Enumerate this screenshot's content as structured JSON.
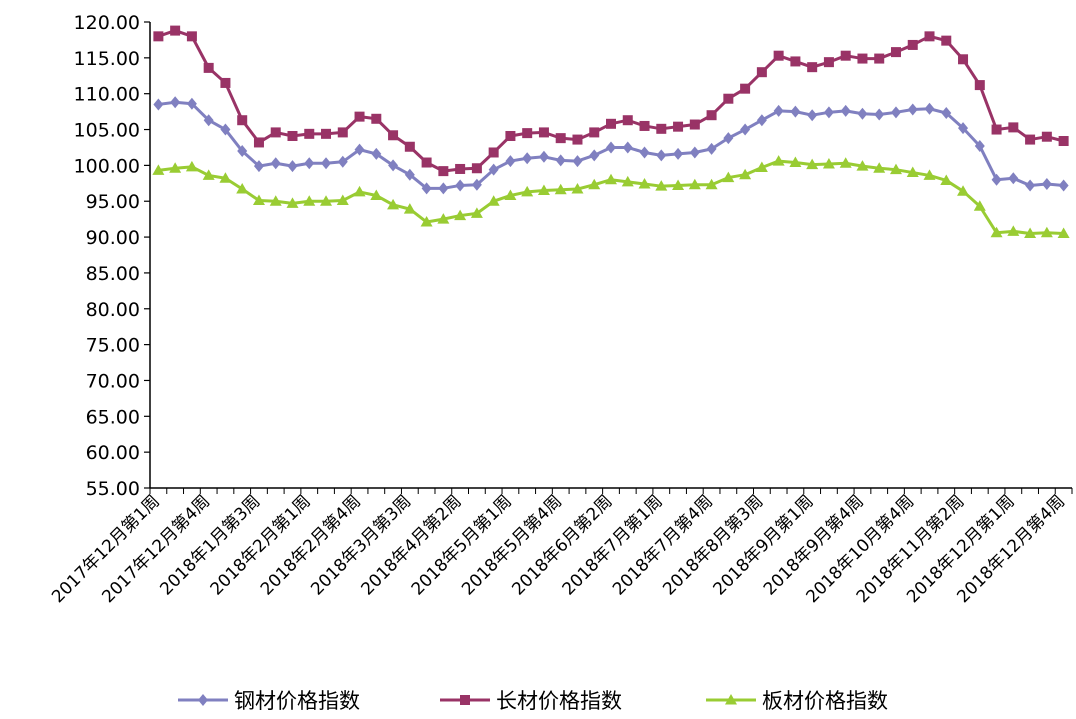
{
  "chart_data": {
    "type": "line",
    "title": "",
    "xlabel": "",
    "ylabel": "",
    "ylim": [
      55,
      120
    ],
    "y_ticks": [
      "55.00",
      "60.00",
      "65.00",
      "70.00",
      "75.00",
      "80.00",
      "85.00",
      "90.00",
      "95.00",
      "100.00",
      "105.00",
      "110.00",
      "115.00",
      "120.00"
    ],
    "x_tick_labels": [
      "2017年12月第1周",
      "2017年12月第4周",
      "2018年1月第3周",
      "2018年2月第1周",
      "2018年2月第4周",
      "2018年3月第3周",
      "2018年4月第2周",
      "2018年5月第1周",
      "2018年5月第4周",
      "2018年6月第2周",
      "2018年7月第1周",
      "2018年7月第4周",
      "2018年8月第3周",
      "2018年9月第1周",
      "2018年9月第4周",
      "2018年10月第4周",
      "2018年11月第2周",
      "2018年12月第1周",
      "2018年12月第4周"
    ],
    "grid": false,
    "legend_position": "bottom",
    "series": [
      {
        "name": "钢材价格指数",
        "color": "#8080c0",
        "marker": "diamond",
        "values": [
          108.5,
          108.8,
          108.6,
          106.3,
          105.0,
          102.0,
          99.9,
          100.3,
          99.9,
          100.3,
          100.3,
          100.5,
          102.2,
          101.6,
          100.0,
          98.7,
          96.8,
          96.8,
          97.2,
          97.3,
          99.4,
          100.6,
          101.0,
          101.2,
          100.7,
          100.6,
          101.4,
          102.5,
          102.5,
          101.8,
          101.4,
          101.6,
          101.8,
          102.3,
          103.8,
          105.0,
          106.3,
          107.6,
          107.5,
          107.0,
          107.4,
          107.6,
          107.2,
          107.1,
          107.4,
          107.8,
          107.9,
          107.3,
          105.2,
          102.7,
          98.0,
          98.2,
          97.2,
          97.4,
          97.2
        ]
      },
      {
        "name": "长材价格指数",
        "color": "#993366",
        "marker": "square",
        "values": [
          118.0,
          118.8,
          118.0,
          113.6,
          111.5,
          106.3,
          103.2,
          104.6,
          104.1,
          104.4,
          104.4,
          104.6,
          106.8,
          106.5,
          104.2,
          102.6,
          100.4,
          99.2,
          99.5,
          99.6,
          101.8,
          104.1,
          104.5,
          104.6,
          103.8,
          103.6,
          104.6,
          105.8,
          106.3,
          105.5,
          105.1,
          105.4,
          105.7,
          107.0,
          109.3,
          110.7,
          113.0,
          115.3,
          114.5,
          113.7,
          114.4,
          115.3,
          114.9,
          114.9,
          115.8,
          116.8,
          118.0,
          117.4,
          114.8,
          111.2,
          105.0,
          105.3,
          103.6,
          104.0,
          103.4
        ]
      },
      {
        "name": "板材价格指数",
        "color": "#99cc33",
        "marker": "triangle",
        "values": [
          99.3,
          99.6,
          99.8,
          98.6,
          98.2,
          96.7,
          95.1,
          95.0,
          94.7,
          95.0,
          95.0,
          95.1,
          96.3,
          95.8,
          94.5,
          93.9,
          92.1,
          92.5,
          93.0,
          93.3,
          95.0,
          95.8,
          96.3,
          96.5,
          96.6,
          96.7,
          97.3,
          98.0,
          97.7,
          97.4,
          97.1,
          97.2,
          97.3,
          97.3,
          98.3,
          98.7,
          99.7,
          100.6,
          100.4,
          100.1,
          100.2,
          100.3,
          99.9,
          99.6,
          99.4,
          99.0,
          98.6,
          97.9,
          96.4,
          94.3,
          90.6,
          90.8,
          90.5,
          90.6,
          90.5
        ]
      }
    ]
  }
}
